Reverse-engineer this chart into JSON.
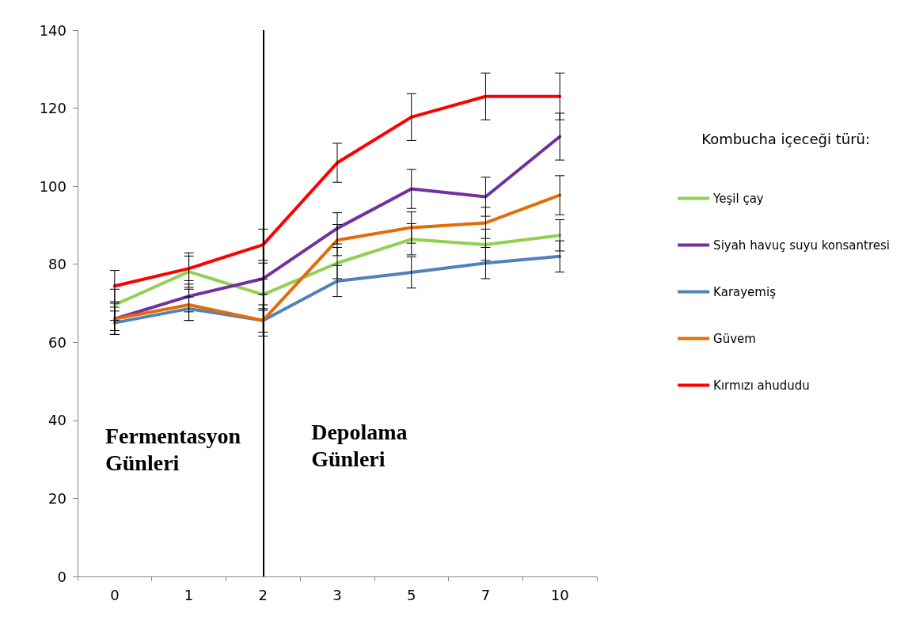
{
  "chart_data": {
    "type": "line",
    "categories": [
      "0",
      "1",
      "2",
      "3",
      "5",
      "7",
      "10"
    ],
    "legend_title": "Kombucha içeceği türü:",
    "legend": "right",
    "grid": false,
    "marker": "none",
    "line_style": "solid",
    "ylim": [
      0,
      140
    ],
    "yticks": [
      0,
      20,
      40,
      60,
      80,
      100,
      120,
      140
    ],
    "series": [
      {
        "name": "Yeşil çay",
        "color": "#92d050",
        "values": [
          69.6,
          78.1,
          72.2,
          80.3,
          86.4,
          85,
          87.4
        ],
        "errors": [
          4,
          4,
          4,
          4,
          4,
          4,
          4
        ]
      },
      {
        "name": "Siyah havuç suyu konsantresi",
        "color": "#7030a0",
        "values": [
          66,
          71.8,
          76.3,
          89.2,
          99.3,
          97.3,
          112.7
        ],
        "errors": [
          4,
          4,
          4,
          4,
          5,
          5,
          6
        ]
      },
      {
        "name": "Karayemiş",
        "color": "#4f81bd",
        "values": [
          65,
          68.6,
          65.6,
          75.7,
          77.9,
          80.3,
          82
        ],
        "errors": [
          3,
          3,
          3,
          4,
          4,
          4,
          4
        ]
      },
      {
        "name": "Güvem",
        "color": "#e36c09",
        "values": [
          66,
          69.6,
          65.6,
          86.2,
          89.4,
          90.6,
          97.7
        ],
        "errors": [
          3,
          4,
          4,
          4,
          4,
          4,
          5
        ]
      },
      {
        "name": "Kırmızı ahududu",
        "color": "#ff0000",
        "values": [
          74.4,
          78.9,
          85,
          106,
          117.7,
          123,
          123
        ],
        "errors": [
          4,
          4,
          4,
          5,
          6,
          6,
          6
        ]
      }
    ],
    "ref_lines": [
      {
        "axis": "x",
        "value": "2",
        "color": "#000000"
      }
    ],
    "annotations": [
      "Fermentasyon Günleri",
      "Depolama Günleri"
    ]
  }
}
